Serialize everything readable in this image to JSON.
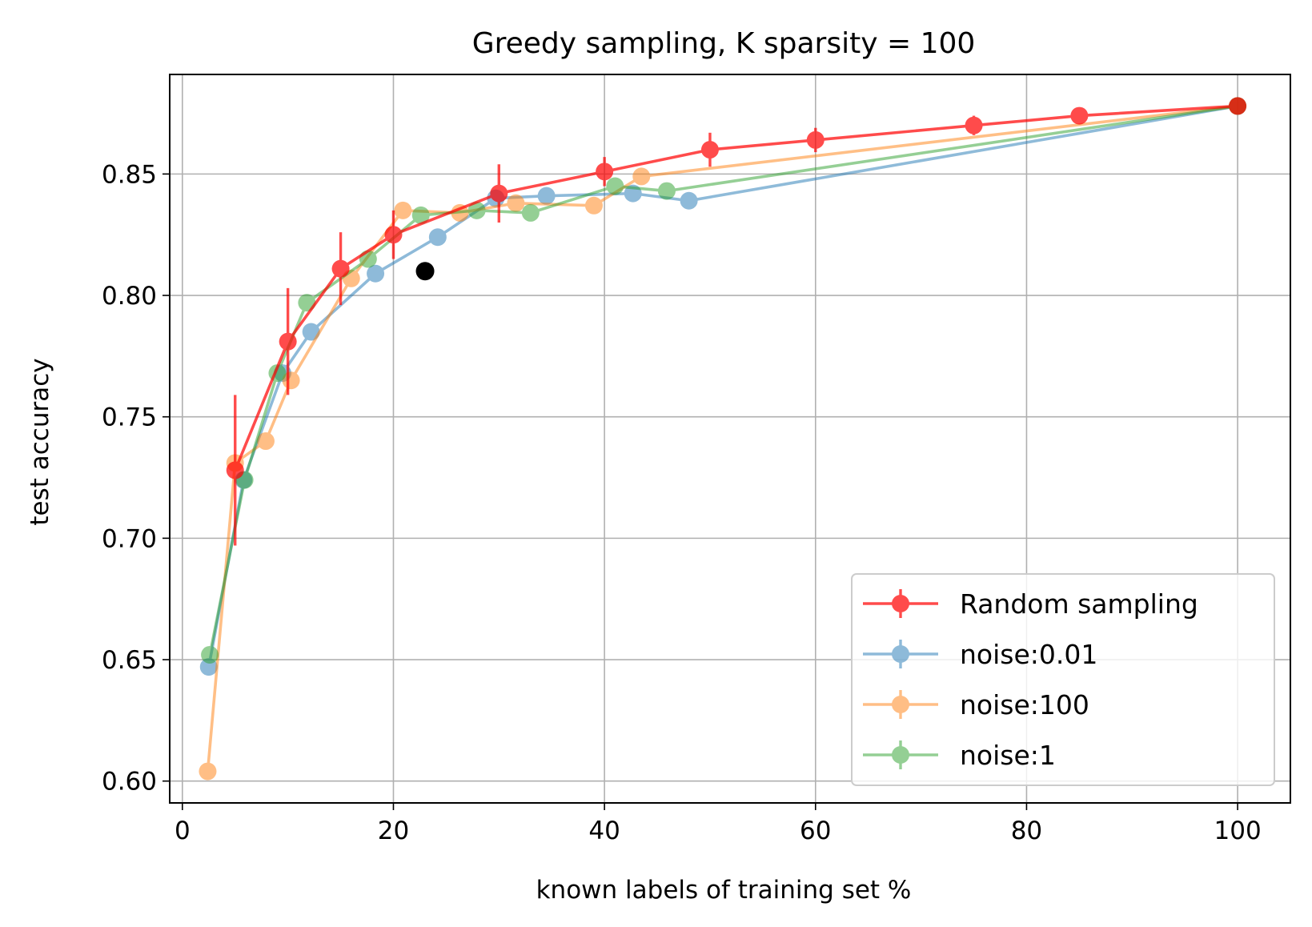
{
  "chart_data": {
    "type": "line",
    "title": "Greedy sampling, K sparsity = 100",
    "xlabel": "known labels of training set %",
    "ylabel": "test accuracy",
    "xlim": [
      -1.2,
      105
    ],
    "ylim": [
      0.591,
      0.891
    ],
    "xticks": [
      0,
      20,
      40,
      60,
      80,
      100
    ],
    "xtick_labels": [
      "0",
      "20",
      "40",
      "60",
      "80",
      "100"
    ],
    "yticks": [
      0.6,
      0.65,
      0.7,
      0.75,
      0.8,
      0.85
    ],
    "ytick_labels": [
      "0.60",
      "0.65",
      "0.70",
      "0.75",
      "0.80",
      "0.85"
    ],
    "grid": true,
    "legend_position": "lower-right",
    "series": [
      {
        "name": "noise:0.01",
        "color": "#1f77b4",
        "opacity": 0.5,
        "x": [
          2.5,
          5.8,
          9.5,
          12.2,
          18.3,
          24.2,
          29.7,
          34.5,
          42.7,
          48,
          100
        ],
        "y": [
          0.647,
          0.724,
          0.768,
          0.785,
          0.809,
          0.824,
          0.84,
          0.841,
          0.842,
          0.839,
          0.878
        ]
      },
      {
        "name": "noise:100",
        "color": "#ff7f0e",
        "opacity": 0.5,
        "x": [
          2.4,
          5,
          7.9,
          10.3,
          16,
          20.9,
          26.3,
          31.6,
          39,
          43.5,
          100
        ],
        "y": [
          0.604,
          0.731,
          0.74,
          0.765,
          0.807,
          0.835,
          0.834,
          0.838,
          0.837,
          0.849,
          0.878
        ]
      },
      {
        "name": "noise:1",
        "color": "#2ca02c",
        "opacity": 0.5,
        "x": [
          2.6,
          5.9,
          9,
          11.8,
          17.6,
          22.6,
          27.9,
          33,
          41,
          45.9,
          100
        ],
        "y": [
          0.652,
          0.724,
          0.768,
          0.797,
          0.815,
          0.833,
          0.835,
          0.834,
          0.845,
          0.843,
          0.878
        ]
      },
      {
        "name": "Random sampling",
        "color": "#ff0000",
        "opacity": 0.7,
        "x": [
          5,
          10,
          15,
          20,
          30,
          40,
          50,
          60,
          75,
          85,
          100
        ],
        "y": [
          0.728,
          0.781,
          0.811,
          0.825,
          0.842,
          0.851,
          0.86,
          0.864,
          0.87,
          0.874,
          0.878
        ],
        "yerr": [
          0.031,
          0.022,
          0.015,
          0.01,
          0.012,
          0.006,
          0.007,
          0.005,
          0.004,
          0.003,
          0.002
        ]
      }
    ],
    "extra_point": {
      "x": 23,
      "y": 0.81,
      "color": "#000000"
    },
    "legend_order": [
      "Random sampling",
      "noise:0.01",
      "noise:100",
      "noise:1"
    ]
  }
}
